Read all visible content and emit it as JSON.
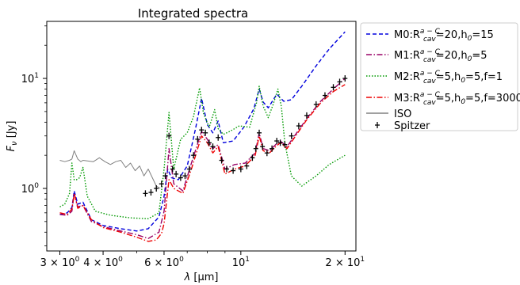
{
  "chart_data": {
    "type": "line",
    "title": "Integrated spectra",
    "xlabel": "λ [μm]",
    "ylabel": "F_ν [Jy]",
    "xscale": "log",
    "yscale": "log",
    "xlim": [
      2.75,
      21.5
    ],
    "ylim": [
      0.27,
      33
    ],
    "xticks_major": [
      {
        "value": 3,
        "base": "3 × 10",
        "exp": "0"
      },
      {
        "value": 4,
        "base": "4 × 10",
        "exp": "0"
      },
      {
        "value": 6,
        "base": "6 × 10",
        "exp": "0"
      },
      {
        "value": 10,
        "base": "10",
        "exp": "1"
      },
      {
        "value": 20,
        "base": "2 × 10",
        "exp": "1"
      }
    ],
    "yticks_major": [
      {
        "value": 1,
        "base": "10",
        "exp": "0"
      },
      {
        "value": 10,
        "base": "10",
        "exp": "1"
      }
    ],
    "legend_position": "outside-right",
    "series": [
      {
        "name": "M0:R_cav^{a−C}=20,h_0=15",
        "legend": {
          "pre": "M0:R",
          "sub": "cav",
          "sup": "a − C",
          "post": "=20,h",
          "sub2": "0",
          "post2": "=15"
        },
        "color": "#0000dd",
        "style": "dashed",
        "x": [
          3.0,
          3.15,
          3.25,
          3.3,
          3.38,
          3.5,
          3.7,
          4.0,
          4.5,
          5.0,
          5.4,
          5.8,
          6.0,
          6.15,
          6.3,
          6.6,
          7.0,
          7.4,
          7.7,
          8.0,
          8.3,
          8.6,
          8.9,
          9.5,
          10.2,
          10.9,
          11.3,
          11.6,
          12.0,
          12.7,
          13.3,
          14.0,
          15.0,
          16.5,
          18.0,
          20.0
        ],
        "y": [
          0.58,
          0.6,
          0.67,
          0.95,
          0.72,
          0.75,
          0.52,
          0.46,
          0.43,
          0.41,
          0.43,
          0.55,
          0.85,
          1.5,
          1.25,
          1.2,
          1.6,
          3.5,
          6.6,
          3.8,
          3.2,
          4.1,
          2.6,
          2.7,
          3.6,
          5.3,
          8.0,
          6.1,
          5.4,
          7.2,
          6.2,
          6.4,
          8.5,
          13.0,
          18.5,
          26.5
        ]
      },
      {
        "name": "M1:R_cav^{a−C}=20,h_0=5",
        "legend": {
          "pre": "M1:R",
          "sub": "cav",
          "sup": "a − C",
          "post": "=20,h",
          "sub2": "0",
          "post2": "=5"
        },
        "color": "#990066",
        "style": "dashdot",
        "x": [
          3.0,
          3.15,
          3.25,
          3.3,
          3.38,
          3.5,
          3.7,
          4.0,
          4.5,
          5.0,
          5.4,
          5.8,
          6.0,
          6.2,
          6.4,
          6.8,
          7.2,
          7.7,
          8.0,
          8.3,
          8.6,
          9.0,
          9.6,
          10.3,
          11.0,
          11.3,
          11.6,
          12.1,
          12.6,
          13.0,
          13.6,
          14.5,
          15.5,
          17.0,
          18.5,
          20.0
        ],
        "y": [
          0.58,
          0.57,
          0.62,
          0.9,
          0.68,
          0.7,
          0.5,
          0.45,
          0.41,
          0.38,
          0.35,
          0.4,
          0.62,
          2.3,
          1.1,
          0.95,
          1.7,
          3.3,
          2.8,
          2.3,
          2.5,
          1.5,
          1.65,
          1.7,
          2.1,
          3.2,
          2.3,
          2.2,
          2.5,
          2.7,
          2.4,
          3.2,
          4.3,
          6.2,
          8.0,
          10.0
        ]
      },
      {
        "name": "M2:R_cav^{a−C}=5,h_0=5,f=1",
        "legend": {
          "pre": "M2:R",
          "sub": "cav",
          "sup": "a − C",
          "post": "=5,h",
          "sub2": "0",
          "post2": "=5,f=1"
        },
        "color": "#009900",
        "style": "dotted",
        "x": [
          3.0,
          3.1,
          3.2,
          3.25,
          3.3,
          3.35,
          3.42,
          3.5,
          3.6,
          3.8,
          4.2,
          4.8,
          5.4,
          5.8,
          6.0,
          6.2,
          6.4,
          6.7,
          7.0,
          7.3,
          7.6,
          7.8,
          8.1,
          8.4,
          8.6,
          8.9,
          9.3,
          9.9,
          10.6,
          11.1,
          11.3,
          11.6,
          12.0,
          12.4,
          12.8,
          13.1,
          13.4,
          14.0,
          15.0,
          16.5,
          18.0,
          20.0
        ],
        "y": [
          0.68,
          0.72,
          0.9,
          1.7,
          1.2,
          1.2,
          1.25,
          1.55,
          0.85,
          0.62,
          0.57,
          0.54,
          0.53,
          0.6,
          1.5,
          4.9,
          1.5,
          2.8,
          3.2,
          4.5,
          8.2,
          4.8,
          3.6,
          5.2,
          3.5,
          3.1,
          3.3,
          3.7,
          3.6,
          6.0,
          8.5,
          5.6,
          4.4,
          5.8,
          8.0,
          5.5,
          2.6,
          1.3,
          1.05,
          1.3,
          1.65,
          2.0
        ]
      },
      {
        "name": "M3:R_cav^{a−C}=5,h_0=5,f=3000",
        "legend": {
          "pre": "M3:R",
          "sub": "cav",
          "sup": "a − C",
          "post": "=5,h",
          "sub2": "0",
          "post2": "=5,f=3000"
        },
        "color": "#ee0000",
        "style": "dashdot",
        "x": [
          3.0,
          3.15,
          3.25,
          3.3,
          3.38,
          3.5,
          3.7,
          4.0,
          4.5,
          5.0,
          5.4,
          5.7,
          5.9,
          6.0,
          6.2,
          6.4,
          6.8,
          7.2,
          7.7,
          8.0,
          8.3,
          8.6,
          9.0,
          9.6,
          10.3,
          11.0,
          11.3,
          11.6,
          12.1,
          12.6,
          13.0,
          13.6,
          14.5,
          15.5,
          17.0,
          18.5,
          20.0
        ],
        "y": [
          0.6,
          0.58,
          0.65,
          0.9,
          0.66,
          0.7,
          0.52,
          0.44,
          0.4,
          0.36,
          0.33,
          0.34,
          0.39,
          0.48,
          1.2,
          1.0,
          0.9,
          1.5,
          3.0,
          2.6,
          2.1,
          2.4,
          1.35,
          1.5,
          1.6,
          2.0,
          3.0,
          2.2,
          2.1,
          2.4,
          2.6,
          2.3,
          3.1,
          4.2,
          6.0,
          7.6,
          8.8
        ]
      },
      {
        "name": "ISO",
        "color": "#808080",
        "style": "solid",
        "x": [
          3.0,
          3.1,
          3.2,
          3.25,
          3.3,
          3.38,
          3.45,
          3.5,
          3.6,
          3.75,
          3.9,
          4.05,
          4.2,
          4.35,
          4.5,
          4.65,
          4.8,
          4.95,
          5.1,
          5.25,
          5.4,
          5.55,
          5.7,
          5.85
        ],
        "y": [
          1.8,
          1.75,
          1.8,
          1.85,
          2.2,
          1.85,
          1.75,
          1.8,
          1.78,
          1.75,
          1.9,
          1.75,
          1.65,
          1.75,
          1.8,
          1.55,
          1.7,
          1.45,
          1.6,
          1.3,
          1.5,
          1.25,
          1.05,
          1.0
        ]
      },
      {
        "name": "Spitzer",
        "color": "#000000",
        "style": "markers",
        "x": [
          5.3,
          5.5,
          5.7,
          5.9,
          6.05,
          6.2,
          6.35,
          6.5,
          6.7,
          6.9,
          7.1,
          7.3,
          7.5,
          7.7,
          7.9,
          8.1,
          8.3,
          8.6,
          8.8,
          9.1,
          9.5,
          10.0,
          10.4,
          10.8,
          11.05,
          11.3,
          11.55,
          11.9,
          12.3,
          12.7,
          13.0,
          13.4,
          14.0,
          14.7,
          15.5,
          16.5,
          17.5,
          18.5,
          19.3,
          20.0
        ],
        "y": [
          0.9,
          0.92,
          1.0,
          1.1,
          1.3,
          3.0,
          1.5,
          1.35,
          1.25,
          1.3,
          1.5,
          2.0,
          2.8,
          3.4,
          3.2,
          2.6,
          2.4,
          2.9,
          1.8,
          1.5,
          1.45,
          1.5,
          1.6,
          1.9,
          2.3,
          3.2,
          2.4,
          2.1,
          2.3,
          2.7,
          2.6,
          2.5,
          3.0,
          3.7,
          4.6,
          5.8,
          7.0,
          8.3,
          9.3,
          10.0
        ]
      }
    ]
  }
}
